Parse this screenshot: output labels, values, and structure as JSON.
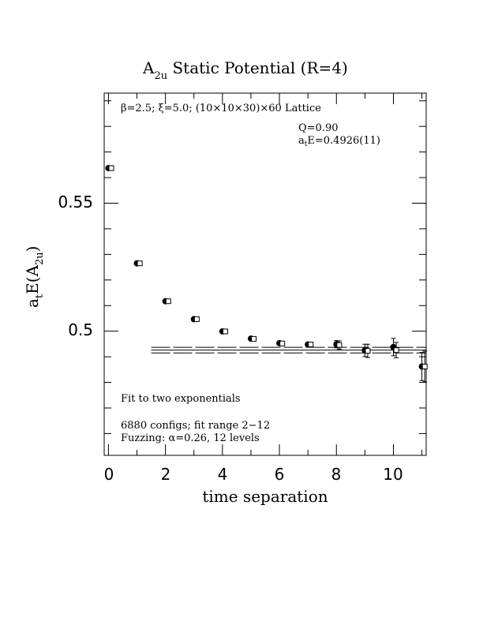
{
  "chart_data": {
    "type": "scatter",
    "title": "A_{2u} Static Potential (R=4)",
    "title_main": "A",
    "title_sub": "2u",
    "title_rest": " Static Potential (R=4)",
    "xlabel": "time separation",
    "ylabel": "a_tE(A_{2u})",
    "xlim": [
      -0.15,
      11.15
    ],
    "ylim": [
      0.4515,
      0.593
    ],
    "xticks": [
      0,
      2,
      4,
      6,
      8,
      10
    ],
    "xtick_labels": [
      "0",
      "2",
      "4",
      "6",
      "8",
      "10"
    ],
    "yticks": [
      0.5,
      0.55
    ],
    "ytick_labels": [
      "0.5",
      "0.55"
    ],
    "series": [
      {
        "marker": "filled-circle",
        "x": [
          0,
          1,
          2,
          3,
          4,
          5,
          6,
          7,
          8,
          9,
          10,
          11
        ],
        "y": [
          0.5637,
          0.5265,
          0.5117,
          0.5047,
          0.4999,
          0.4971,
          0.4953,
          0.4948,
          0.4949,
          0.4925,
          0.4938,
          0.4862
        ],
        "err": [
          0.0005,
          0.0005,
          0.0005,
          0.0005,
          0.0005,
          0.0005,
          0.0006,
          0.0007,
          0.0014,
          0.0024,
          0.0034,
          0.0055
        ]
      },
      {
        "marker": "open-square",
        "x": [
          0.1,
          1.1,
          2.1,
          3.1,
          4.1,
          5.1,
          6.1,
          7.1,
          8.1,
          9.1,
          10.1,
          11.1
        ],
        "y": [
          0.5637,
          0.5265,
          0.5117,
          0.5047,
          0.4999,
          0.497,
          0.4952,
          0.4948,
          0.4946,
          0.4923,
          0.4926,
          0.4862
        ],
        "err": [
          0.0005,
          0.0005,
          0.0005,
          0.0005,
          0.0005,
          0.0006,
          0.0007,
          0.0008,
          0.0016,
          0.0026,
          0.003,
          0.006
        ]
      }
    ],
    "fit": {
      "x_range": [
        1.5,
        11.15
      ],
      "center": 0.4926,
      "upper": 0.4937,
      "lower": 0.4915
    },
    "annotations": {
      "lattice": "β=2.5; ξ=5.0; (10×10×30)×60 Lattice",
      "q": "Q=0.90",
      "energy_main": "a",
      "energy_sub": "t",
      "energy_rest": "E=0.4926(11)",
      "fit_desc": "Fit to two exponentials",
      "configs": "6880 configs; fit range 2−12",
      "fuzzing": "Fuzzing: α=0.26, 12 levels"
    }
  }
}
